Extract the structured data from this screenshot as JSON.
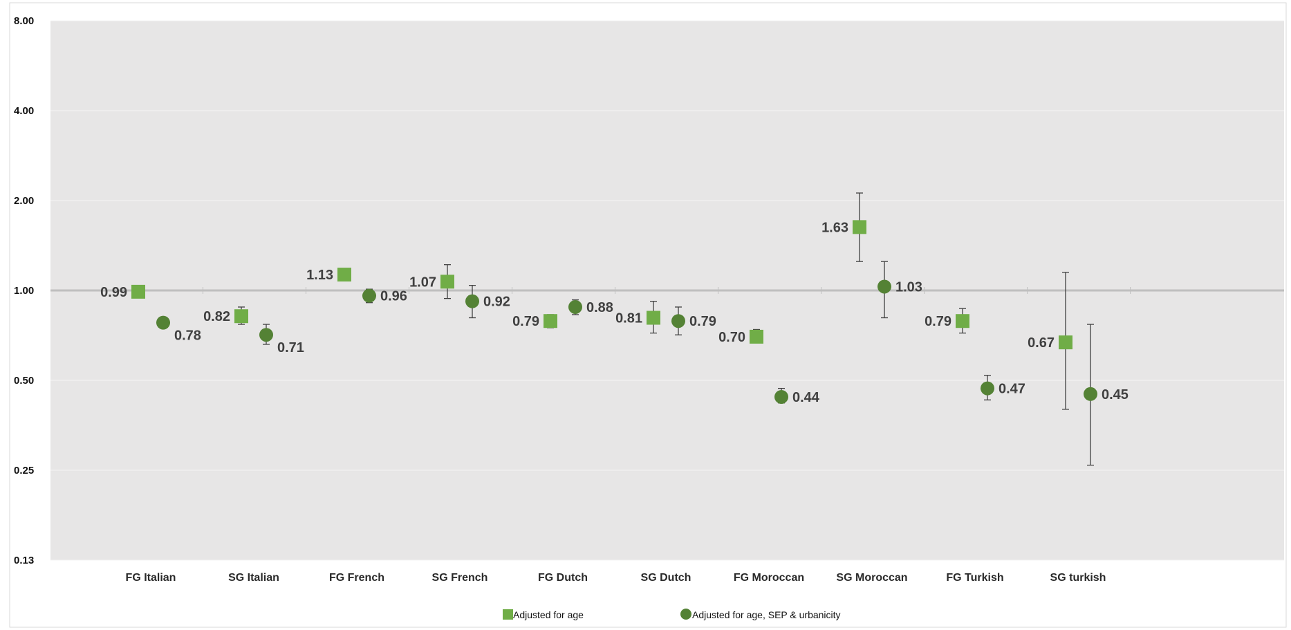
{
  "chart_data": {
    "type": "scatter",
    "title": "",
    "xlabel": "",
    "ylabel": "",
    "y_scale": "log2",
    "ylim": [
      0.125,
      8
    ],
    "y_ticks": [
      {
        "value": 8,
        "label": "8.00"
      },
      {
        "value": 4,
        "label": "4.00"
      },
      {
        "value": 2,
        "label": "2.00"
      },
      {
        "value": 1,
        "label": "1.00"
      },
      {
        "value": 0.5,
        "label": "0.50"
      },
      {
        "value": 0.25,
        "label": "0.25"
      },
      {
        "value": 0.125,
        "label": "0.13"
      }
    ],
    "reference_line": 1,
    "grid": true,
    "legend_position": "bottom",
    "categories": [
      "FG Italian",
      "SG Italian",
      "FG French",
      "SG French",
      "FG Dutch",
      "SG Dutch",
      "FG Moroccan",
      "SG Moroccan",
      "FG Turkish",
      "SG turkish"
    ],
    "series": [
      {
        "name": "Adjusted for age",
        "marker": "square",
        "color": "#70ad47",
        "values": [
          0.99,
          0.82,
          1.13,
          1.07,
          0.79,
          0.81,
          0.7,
          1.63,
          0.79,
          0.67
        ],
        "labels": [
          "0.99",
          "0.82",
          "1.13",
          "1.07",
          "0.79",
          "0.81",
          "0.70",
          "1.63",
          "0.79",
          "0.67"
        ],
        "ci_lower": [
          null,
          0.77,
          1.08,
          0.94,
          0.75,
          0.72,
          0.67,
          1.25,
          0.72,
          0.4
        ],
        "ci_upper": [
          null,
          0.88,
          1.18,
          1.22,
          0.83,
          0.92,
          0.74,
          2.12,
          0.87,
          1.15
        ]
      },
      {
        "name": "Adjusted for age, SEP & urbanicity",
        "marker": "circle",
        "color": "#548235",
        "values": [
          0.78,
          0.71,
          0.96,
          0.92,
          0.88,
          0.79,
          0.44,
          1.03,
          0.47,
          0.45
        ],
        "labels": [
          "0.78",
          "0.71",
          "0.96",
          "0.92",
          "0.88",
          "0.79",
          "0.44",
          "1.03",
          "0.47",
          "0.45"
        ],
        "ci_lower": [
          null,
          0.66,
          0.91,
          0.81,
          0.83,
          0.71,
          0.42,
          0.81,
          0.43,
          0.26
        ],
        "ci_upper": [
          null,
          0.77,
          1.01,
          1.04,
          0.93,
          0.88,
          0.47,
          1.25,
          0.52,
          0.77
        ]
      }
    ]
  }
}
